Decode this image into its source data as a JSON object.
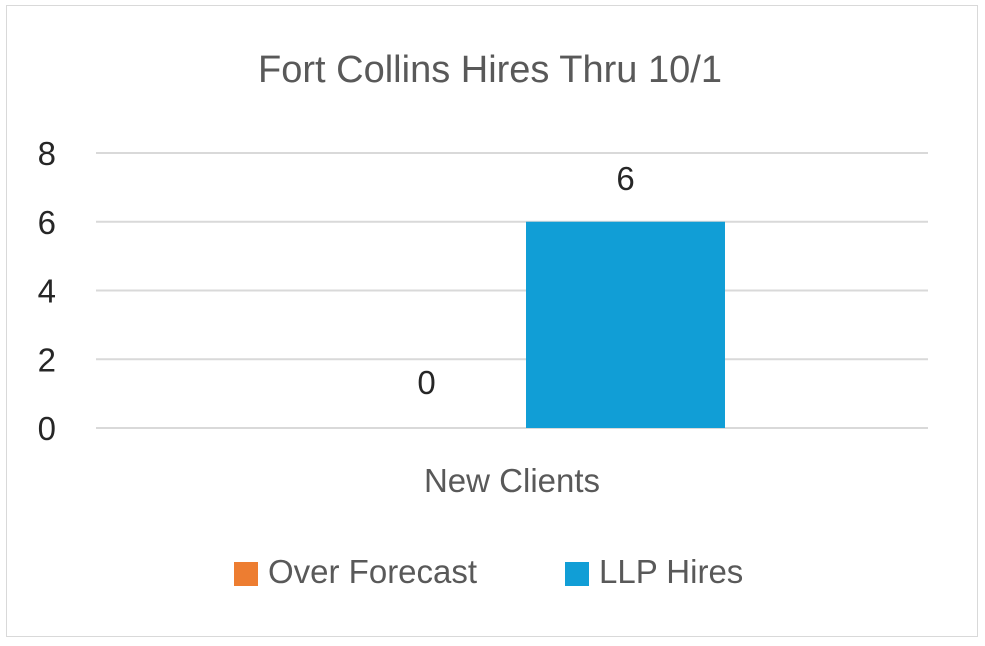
{
  "chart_data": {
    "type": "bar",
    "title": "Fort Collins Hires Thru 10/1",
    "categories": [
      "New Clients"
    ],
    "series": [
      {
        "name": "Over Forecast",
        "values": [
          0
        ],
        "color": "#ed7d31"
      },
      {
        "name": "LLP Hires",
        "values": [
          6
        ],
        "color": "#119ed6"
      }
    ],
    "ylim": [
      0,
      8
    ],
    "yticks": [
      "0",
      "2",
      "4",
      "6",
      "8"
    ],
    "data_labels": [
      "0",
      "6"
    ],
    "xlabel": "",
    "ylabel": "",
    "grid": true,
    "legend": "bottom"
  }
}
